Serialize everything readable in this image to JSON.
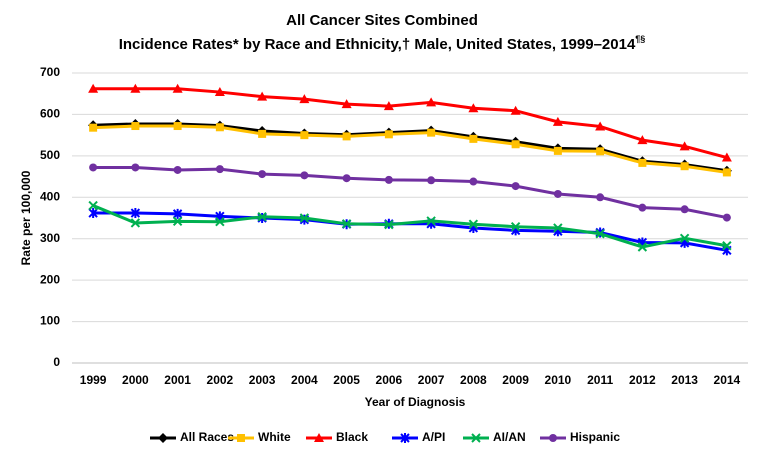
{
  "chart_data": {
    "type": "line",
    "title": "All Cancer Sites Combined",
    "subtitle": "Incidence Rates* by Race and Ethnicity,† Male, United States, 1999–2014",
    "subtitle_superscript": "¶§",
    "x_label": "Year of Diagnosis",
    "y_label": "Rate per 100,000",
    "categories": [
      "1999",
      "2000",
      "2001",
      "2002",
      "2003",
      "2004",
      "2005",
      "2006",
      "2007",
      "2008",
      "2009",
      "2010",
      "2011",
      "2012",
      "2013",
      "2014"
    ],
    "series": [
      {
        "name": "All Races",
        "color": "#000000",
        "marker": "diamond",
        "values": [
          574,
          577,
          577,
          573,
          560,
          554,
          551,
          556,
          561,
          546,
          534,
          518,
          516,
          487,
          479,
          464
        ]
      },
      {
        "name": "White",
        "color": "#ffc000",
        "marker": "square",
        "values": [
          568,
          572,
          572,
          569,
          553,
          550,
          547,
          552,
          556,
          541,
          528,
          512,
          511,
          483,
          475,
          460
        ]
      },
      {
        "name": "Black",
        "color": "#ff0000",
        "marker": "triangle",
        "values": [
          662,
          662,
          662,
          654,
          643,
          637,
          625,
          620,
          629,
          615,
          609,
          582,
          571,
          538,
          523,
          496
        ]
      },
      {
        "name": "A/PI",
        "color": "#0000ff",
        "marker": "star",
        "values": [
          362,
          362,
          360,
          354,
          350,
          346,
          335,
          336,
          336,
          326,
          320,
          318,
          315,
          291,
          290,
          272
        ]
      },
      {
        "name": "AI/AN",
        "color": "#00b050",
        "marker": "cross",
        "values": [
          380,
          338,
          342,
          341,
          353,
          350,
          336,
          334,
          343,
          335,
          329,
          326,
          312,
          280,
          301,
          283
        ]
      },
      {
        "name": "Hispanic",
        "color": "#7030a0",
        "marker": "circle",
        "values": [
          472,
          472,
          466,
          468,
          456,
          453,
          446,
          442,
          441,
          438,
          427,
          408,
          400,
          375,
          371,
          351
        ]
      }
    ],
    "ylim": [
      0,
      700
    ],
    "yticks": [
      0,
      100,
      200,
      300,
      400,
      500,
      600,
      700
    ],
    "grid": true,
    "legend": "bottom"
  }
}
